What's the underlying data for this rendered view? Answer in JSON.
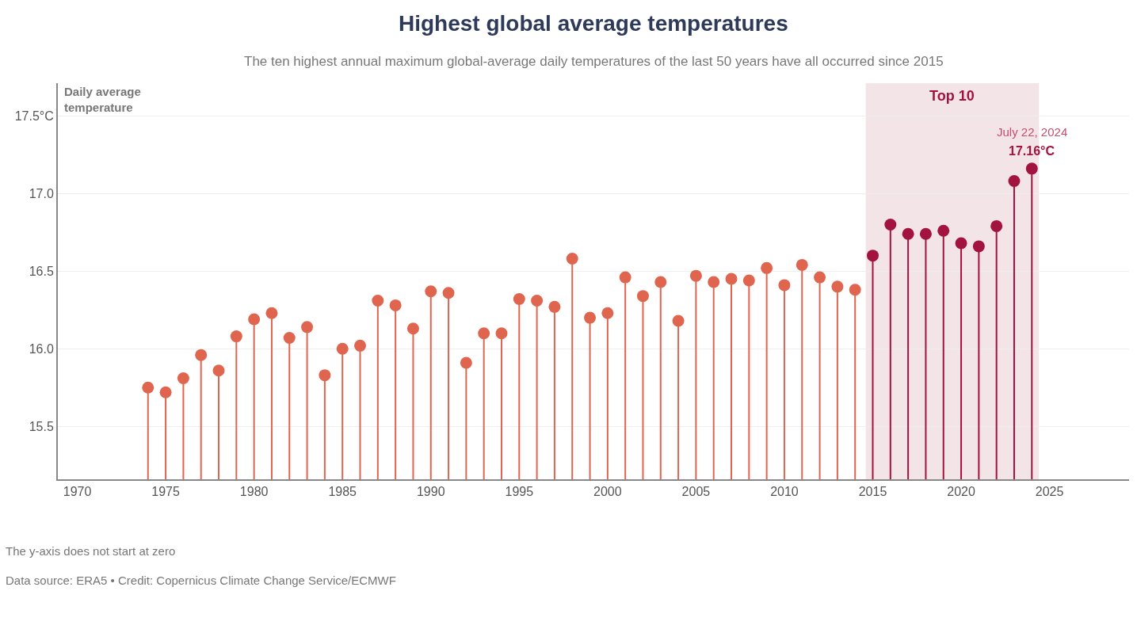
{
  "chart_data": {
    "type": "lollipop",
    "title": "Highest global average temperatures",
    "subtitle": "The ten highest annual maximum global-average daily temperatures of the last 50 years have all occurred since 2015",
    "ylabel": "Daily average temperature",
    "x": [
      1974,
      1975,
      1976,
      1977,
      1978,
      1979,
      1980,
      1981,
      1982,
      1983,
      1984,
      1985,
      1986,
      1987,
      1988,
      1989,
      1990,
      1991,
      1992,
      1993,
      1994,
      1995,
      1996,
      1997,
      1998,
      1999,
      2000,
      2001,
      2002,
      2003,
      2004,
      2005,
      2006,
      2007,
      2008,
      2009,
      2010,
      2011,
      2012,
      2013,
      2014,
      2015,
      2016,
      2017,
      2018,
      2019,
      2020,
      2021,
      2022,
      2023,
      2024
    ],
    "values": [
      15.75,
      15.72,
      15.81,
      15.96,
      15.86,
      16.08,
      16.19,
      16.23,
      16.07,
      16.14,
      15.83,
      16.0,
      16.02,
      16.31,
      16.28,
      16.13,
      16.37,
      16.36,
      15.91,
      16.1,
      16.1,
      16.32,
      16.31,
      16.27,
      16.58,
      16.2,
      16.23,
      16.46,
      16.34,
      16.43,
      16.18,
      16.47,
      16.43,
      16.45,
      16.44,
      16.52,
      16.41,
      16.54,
      16.46,
      16.4,
      16.38,
      16.6,
      16.8,
      16.74,
      16.74,
      16.76,
      16.68,
      16.66,
      16.79,
      17.08,
      17.16
    ],
    "colors": [
      "#e0654f",
      "#e0654f",
      "#e0654f",
      "#e0654f",
      "#e0654f",
      "#e0654f",
      "#e0654f",
      "#e0654f",
      "#e0654f",
      "#e0654f",
      "#e0654f",
      "#e0654f",
      "#e0654f",
      "#e0654f",
      "#e0654f",
      "#e0654f",
      "#e0654f",
      "#e0654f",
      "#e0654f",
      "#e0654f",
      "#e0654f",
      "#e0654f",
      "#e0654f",
      "#e0654f",
      "#e0654f",
      "#e0654f",
      "#e0654f",
      "#e0654f",
      "#e0654f",
      "#e0654f",
      "#e0654f",
      "#e0654f",
      "#e0654f",
      "#e0654f",
      "#e0654f",
      "#e0654f",
      "#e0654f",
      "#e0654f",
      "#e0654f",
      "#e0654f",
      "#e0654f",
      "#a3133f",
      "#a3133f",
      "#a3133f",
      "#a3133f",
      "#a3133f",
      "#a3133f",
      "#a3133f",
      "#a3133f",
      "#a3133f",
      "#a3133f"
    ],
    "xlim": [
      1968.9,
      2029.5
    ],
    "xticks": [
      1970,
      1975,
      1980,
      1985,
      1990,
      1995,
      2000,
      2005,
      2010,
      2015,
      2020,
      2025
    ],
    "ylim": [
      15.16,
      17.71
    ],
    "yticks": [
      15.5,
      {
        "value": 16,
        "label": "16.0"
      },
      16.5,
      {
        "value": 17,
        "label": "17.0"
      },
      {
        "value": 17.5,
        "label": "17.5°C"
      }
    ],
    "bands": [
      {
        "axis": "x",
        "from": 2014.6,
        "to": 2024.4,
        "label": "Top 10",
        "color": "#f3e4e7"
      }
    ],
    "annotations": [
      {
        "text": "July 22, 2024",
        "x": 2024,
        "y": 17.16
      },
      {
        "text": "17.16°C",
        "x": 2024,
        "y": 17.16
      },
      "The y-axis does not start at zero",
      "Data source: ERA5 • Credit: Copernicus Climate Change Service/ECMWF"
    ],
    "grid": "y",
    "marker": "circle"
  }
}
